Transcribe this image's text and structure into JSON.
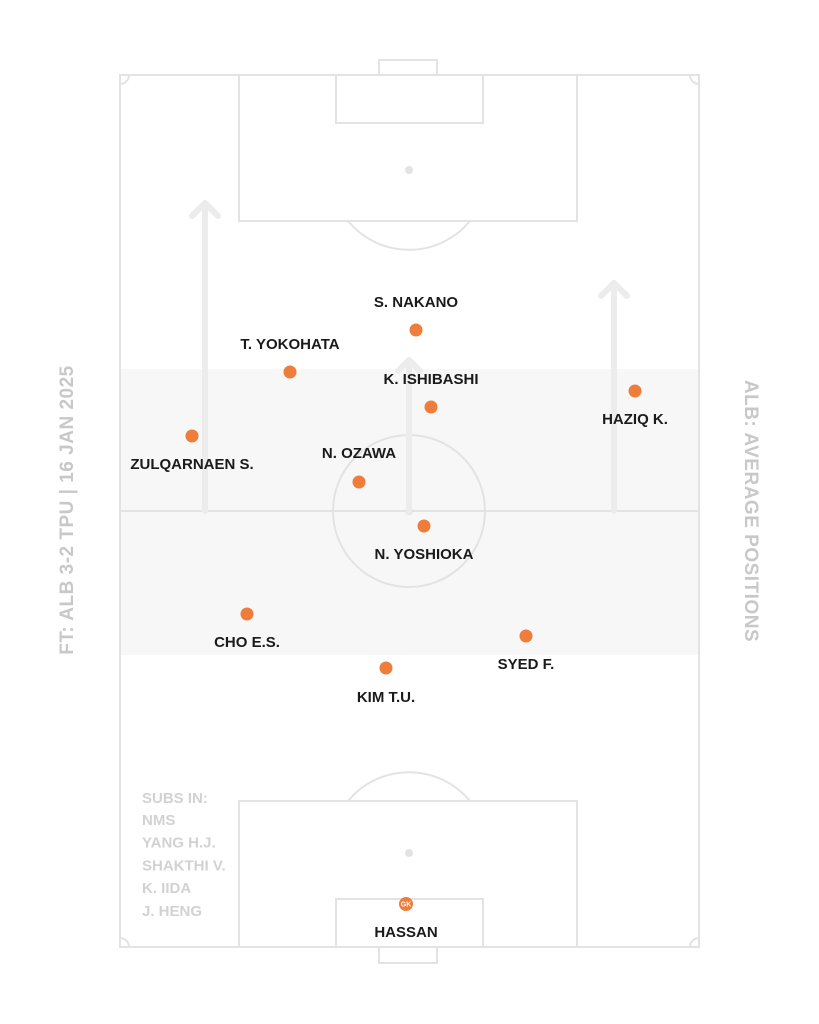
{
  "title": "ALB: AVERAGE POSITIONS",
  "subtitle": "FT: ALB 3-2 TPU | 16 JAN 2025",
  "players": [
    {
      "name": "S. NAKANO"
    },
    {
      "name": "T. YOKOHATA"
    },
    {
      "name": "K. ISHIBASHI"
    },
    {
      "name": "HAZIQ K."
    },
    {
      "name": "ZULQARNAEN S."
    },
    {
      "name": "N. OZAWA"
    },
    {
      "name": "N. YOSHIOKA"
    },
    {
      "name": "CHO E.S."
    },
    {
      "name": "SYED F."
    },
    {
      "name": "KIM T.U."
    },
    {
      "name": "HASSAN",
      "badge": "GK"
    }
  ],
  "subs": {
    "heading": "SUBS IN:",
    "names": [
      "NMS",
      "YANG H.J.",
      "SHAKTHI V.",
      "K. IIDA",
      "J. HENG"
    ]
  }
}
